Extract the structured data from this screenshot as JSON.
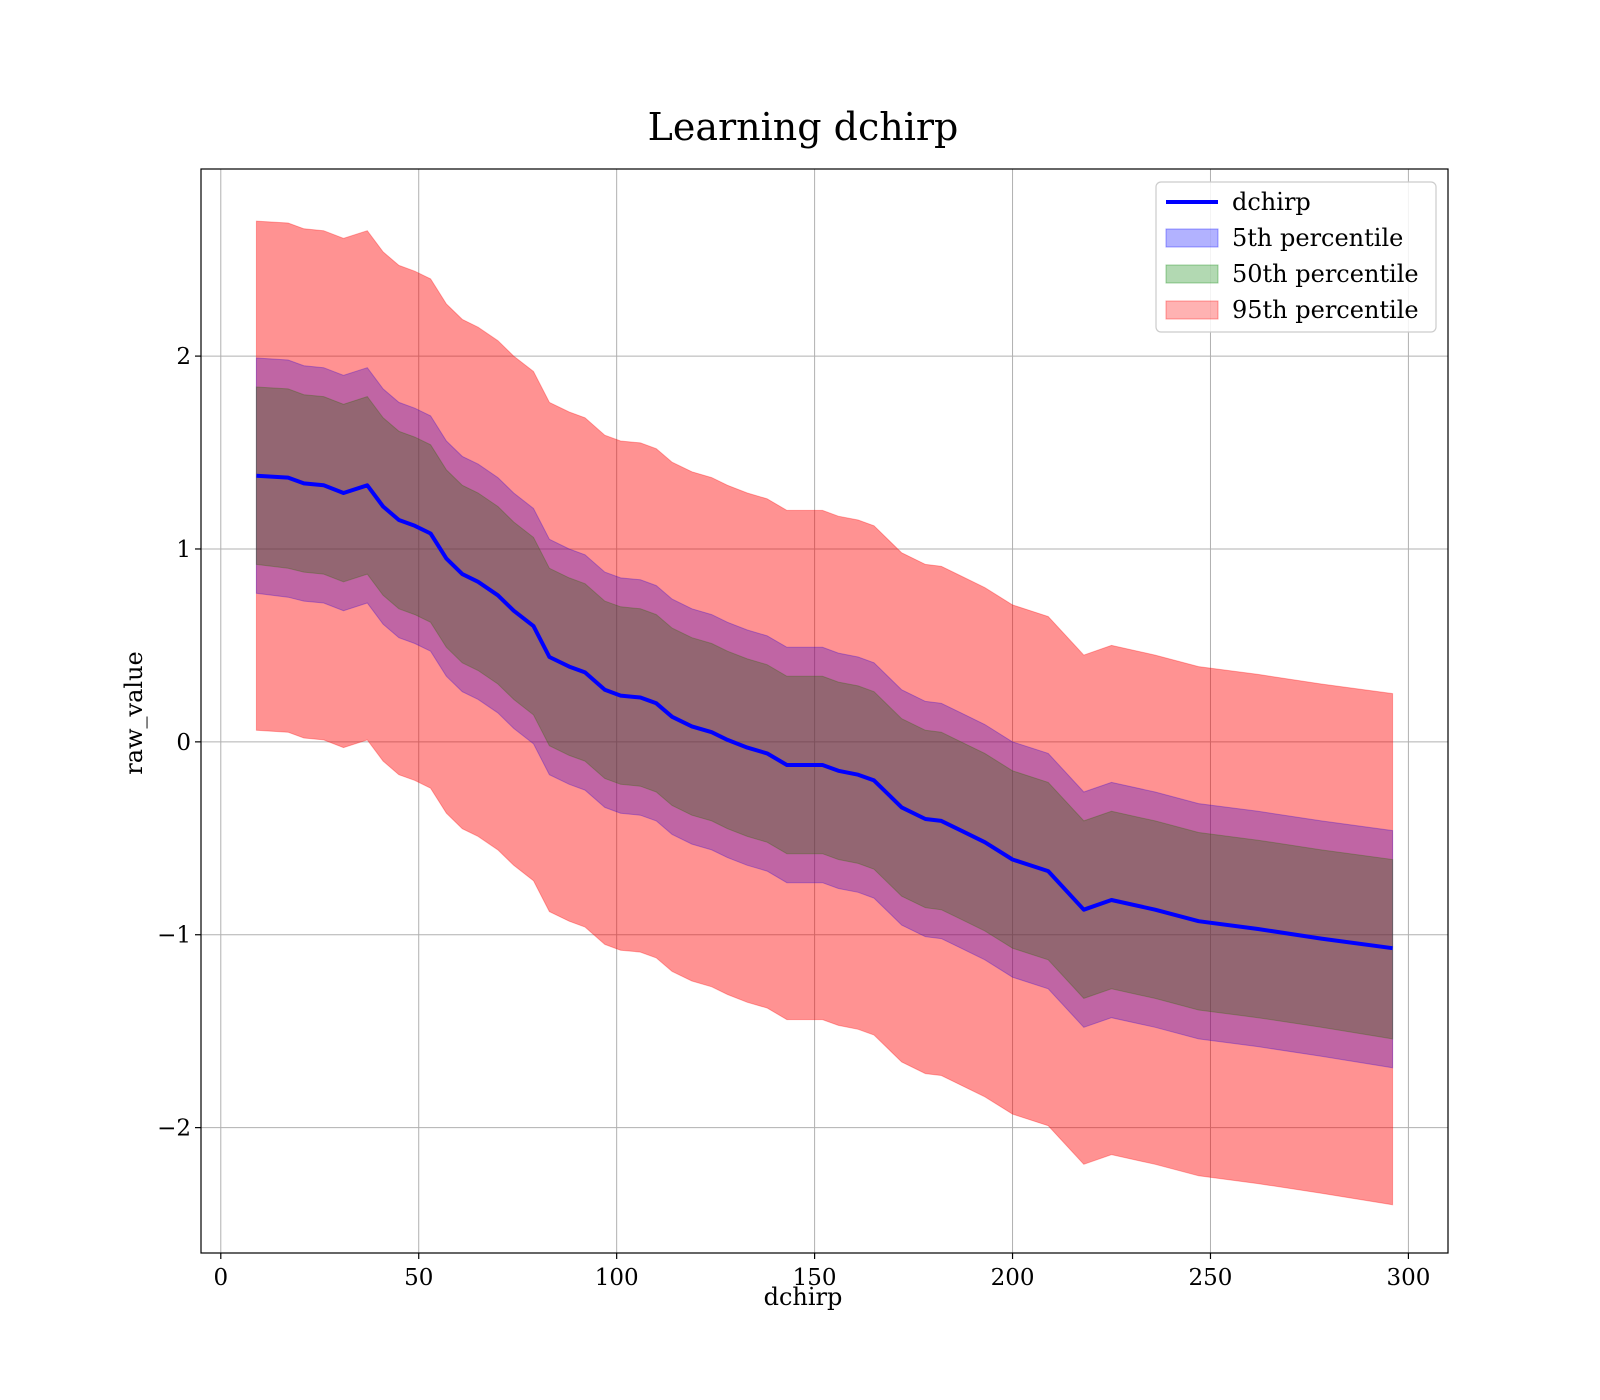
{
  "chart_data": {
    "type": "line",
    "title": "Learning dchirp",
    "xlabel": "dchirp",
    "ylabel": "raw_value",
    "xlim": [
      -5,
      310
    ],
    "ylim": [
      -2.65,
      2.97
    ],
    "grid": true,
    "legend_position": "top-right",
    "x_ticks": [
      0,
      50,
      100,
      150,
      200,
      250,
      300
    ],
    "y_ticks": [
      -2,
      -1,
      0,
      1,
      2
    ],
    "x_tick_labels": [
      "0",
      "50",
      "100",
      "150",
      "200",
      "250",
      "300"
    ],
    "y_tick_labels": [
      "−2",
      "−1",
      "0",
      "1",
      "2"
    ],
    "x": [
      9,
      17,
      21,
      26,
      31,
      37,
      41,
      45,
      49,
      53,
      57,
      61,
      65,
      70,
      74,
      79,
      83,
      88,
      92,
      97,
      101,
      106,
      110,
      114,
      119,
      124,
      128,
      133,
      138,
      143,
      147,
      152,
      156,
      161,
      165,
      172,
      178,
      182,
      187,
      193,
      200,
      209,
      218,
      225,
      236,
      247,
      262,
      278,
      296
    ],
    "series": [
      {
        "name": "dchirp",
        "color": "#0000ff",
        "kind": "line",
        "values": [
          1.38,
          1.37,
          1.34,
          1.33,
          1.29,
          1.33,
          1.22,
          1.15,
          1.12,
          1.08,
          0.95,
          0.87,
          0.83,
          0.76,
          0.68,
          0.6,
          0.44,
          0.39,
          0.36,
          0.27,
          0.24,
          0.23,
          0.2,
          0.13,
          0.08,
          0.05,
          0.01,
          -0.03,
          -0.06,
          -0.12,
          -0.12,
          -0.12,
          -0.15,
          -0.17,
          -0.2,
          -0.34,
          -0.4,
          -0.41,
          -0.46,
          -0.52,
          -0.61,
          -0.67,
          -0.87,
          -0.82,
          -0.87,
          -0.93,
          -0.97,
          -1.02,
          -1.07
        ]
      },
      {
        "name": "5th percentile",
        "color": "#0000ff",
        "kind": "band",
        "lower": [
          0.77,
          0.75,
          0.73,
          0.72,
          0.68,
          0.72,
          0.61,
          0.54,
          0.51,
          0.47,
          0.34,
          0.26,
          0.22,
          0.15,
          0.07,
          -0.01,
          -0.17,
          -0.22,
          -0.25,
          -0.34,
          -0.37,
          -0.38,
          -0.41,
          -0.48,
          -0.53,
          -0.56,
          -0.6,
          -0.64,
          -0.67,
          -0.73,
          -0.73,
          -0.73,
          -0.76,
          -0.78,
          -0.81,
          -0.95,
          -1.01,
          -1.02,
          -1.07,
          -1.13,
          -1.22,
          -1.28,
          -1.48,
          -1.43,
          -1.48,
          -1.54,
          -1.58,
          -1.63,
          -1.69
        ],
        "upper": [
          1.99,
          1.98,
          1.95,
          1.94,
          1.9,
          1.94,
          1.83,
          1.76,
          1.73,
          1.69,
          1.56,
          1.48,
          1.44,
          1.37,
          1.29,
          1.21,
          1.05,
          1.0,
          0.97,
          0.88,
          0.85,
          0.84,
          0.81,
          0.74,
          0.69,
          0.66,
          0.62,
          0.58,
          0.55,
          0.49,
          0.49,
          0.49,
          0.46,
          0.44,
          0.41,
          0.27,
          0.21,
          0.2,
          0.15,
          0.09,
          0.0,
          -0.06,
          -0.26,
          -0.21,
          -0.26,
          -0.32,
          -0.36,
          -0.41,
          -0.46
        ]
      },
      {
        "name": "50th percentile",
        "color": "#008000",
        "kind": "band",
        "lower": [
          0.92,
          0.9,
          0.88,
          0.87,
          0.83,
          0.87,
          0.76,
          0.69,
          0.66,
          0.62,
          0.49,
          0.41,
          0.37,
          0.3,
          0.22,
          0.14,
          -0.02,
          -0.07,
          -0.1,
          -0.19,
          -0.22,
          -0.23,
          -0.26,
          -0.33,
          -0.38,
          -0.41,
          -0.45,
          -0.49,
          -0.52,
          -0.58,
          -0.58,
          -0.58,
          -0.61,
          -0.63,
          -0.66,
          -0.8,
          -0.86,
          -0.87,
          -0.92,
          -0.98,
          -1.07,
          -1.13,
          -1.33,
          -1.28,
          -1.33,
          -1.39,
          -1.43,
          -1.48,
          -1.54
        ],
        "upper": [
          1.84,
          1.83,
          1.8,
          1.79,
          1.75,
          1.79,
          1.68,
          1.61,
          1.58,
          1.54,
          1.41,
          1.33,
          1.29,
          1.22,
          1.14,
          1.06,
          0.9,
          0.85,
          0.82,
          0.73,
          0.7,
          0.69,
          0.66,
          0.59,
          0.54,
          0.51,
          0.47,
          0.43,
          0.4,
          0.34,
          0.34,
          0.34,
          0.31,
          0.29,
          0.26,
          0.12,
          0.06,
          0.05,
          0.0,
          -0.06,
          -0.15,
          -0.21,
          -0.41,
          -0.36,
          -0.41,
          -0.47,
          -0.51,
          -0.56,
          -0.61
        ]
      },
      {
        "name": "95th percentile",
        "color": "#ff0000",
        "kind": "band",
        "lower": [
          0.06,
          0.05,
          0.02,
          0.01,
          -0.03,
          0.01,
          -0.1,
          -0.17,
          -0.2,
          -0.24,
          -0.37,
          -0.45,
          -0.49,
          -0.56,
          -0.64,
          -0.72,
          -0.88,
          -0.93,
          -0.96,
          -1.05,
          -1.08,
          -1.09,
          -1.12,
          -1.19,
          -1.24,
          -1.27,
          -1.31,
          -1.35,
          -1.38,
          -1.44,
          -1.44,
          -1.44,
          -1.47,
          -1.49,
          -1.52,
          -1.66,
          -1.72,
          -1.73,
          -1.78,
          -1.84,
          -1.93,
          -1.99,
          -2.19,
          -2.14,
          -2.19,
          -2.25,
          -2.29,
          -2.34,
          -2.4
        ]
      },
      {
        "name": "95th percentile upper",
        "color": "#ff0000",
        "kind": "band-upper",
        "values": [
          2.7,
          2.69,
          2.66,
          2.65,
          2.61,
          2.65,
          2.54,
          2.47,
          2.44,
          2.4,
          2.27,
          2.19,
          2.15,
          2.08,
          2.0,
          1.92,
          1.76,
          1.71,
          1.68,
          1.59,
          1.56,
          1.55,
          1.52,
          1.45,
          1.4,
          1.37,
          1.33,
          1.29,
          1.26,
          1.2,
          1.2,
          1.2,
          1.17,
          1.15,
          1.12,
          0.98,
          0.92,
          0.91,
          0.86,
          0.8,
          0.71,
          0.65,
          0.45,
          0.5,
          0.45,
          0.39,
          0.35,
          0.3,
          0.25
        ]
      }
    ],
    "legend": {
      "entries": [
        {
          "label": "dchirp",
          "color": "#0000ff",
          "kind": "line"
        },
        {
          "label": "5th percentile",
          "color": "#0000ff",
          "kind": "patch"
        },
        {
          "label": "50th percentile",
          "color": "#008000",
          "kind": "patch"
        },
        {
          "label": "95th percentile",
          "color": "#ff0000",
          "kind": "patch"
        }
      ]
    }
  }
}
